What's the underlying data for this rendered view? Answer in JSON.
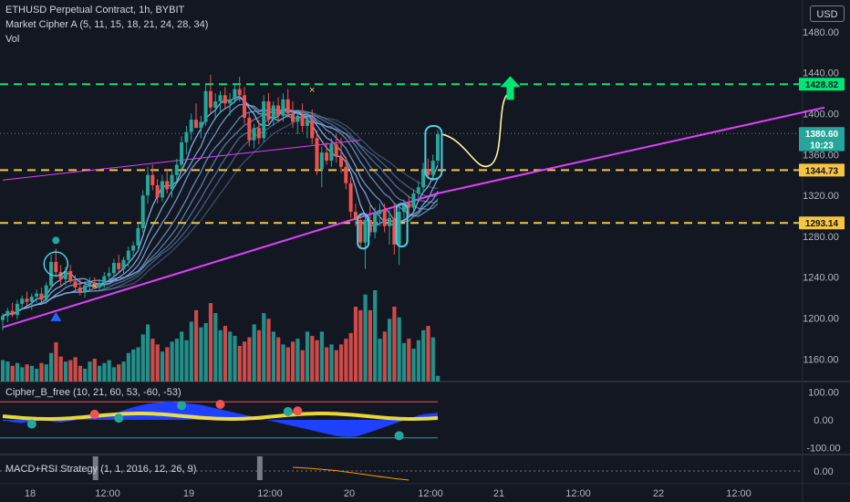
{
  "header": {
    "symbol": "ETHUSD Perpetual Contract, 1h, BYBIT",
    "indicator": "Market Cipher A (5, 11, 15, 18, 21, 24, 28, 34)",
    "volume": "Vol",
    "currency": "USD"
  },
  "panes": {
    "cipher_b": "Cipher_B_free (10, 21, 60, 53, -60, -53)",
    "macd": "MACD+RSI Strategy (1, 1, 2016, 12, 26, 9)"
  },
  "colors": {
    "background": "#131722",
    "up": "#26a69a",
    "down": "#ef5350",
    "resistance_line": "#00e676",
    "support_line": "#f5c542",
    "trend_line": "#e040fb",
    "projection": "#fff59d",
    "arrow": "#00e676",
    "wave": "#1e40ff",
    "ribbon": "#7fb0e6"
  },
  "chart_data": {
    "type": "candlestick",
    "price_axis": {
      "ticks": [
        "1480.00",
        "1440.00",
        "1400.00",
        "1360.00",
        "1320.00",
        "1280.00",
        "1240.00",
        "1200.00",
        "1160.00"
      ],
      "ylim": [
        1138,
        1504
      ]
    },
    "time_axis": {
      "ticks": [
        "18",
        "12:00",
        "19",
        "12:00",
        "20",
        "12:00",
        "21",
        "12:00",
        "22",
        "12:00"
      ]
    },
    "price_labels": [
      {
        "value": 1428.82,
        "text": "1428.82",
        "color": "#00e676",
        "text_color": "#131722"
      },
      {
        "value": 1380.6,
        "text": "1380.60",
        "color": "#26a69a",
        "text_color": "#ffffff"
      },
      {
        "value": 1369.5,
        "text": "10:23",
        "color": "#26a69a",
        "text_color": "#ffffff"
      },
      {
        "value": 1344.73,
        "text": "1344.73",
        "color": "#f5c542",
        "text_color": "#131722"
      },
      {
        "value": 1293.14,
        "text": "1293.14",
        "color": "#f5c542",
        "text_color": "#131722"
      }
    ],
    "horizontal_levels": [
      {
        "value": 1428.82,
        "color": "#00e676",
        "style": "dashed"
      },
      {
        "value": 1344.73,
        "color": "#f5c542",
        "style": "dashed"
      },
      {
        "value": 1293.14,
        "color": "#f5c542",
        "style": "dashed"
      }
    ],
    "last_price_dotted": 1380.6,
    "cipher_b_axis": {
      "ticks": [
        "100.00",
        "0.00",
        "-100.00"
      ]
    },
    "macd_axis": {
      "ticks": [
        "0.00"
      ]
    },
    "candles": [
      {
        "t": 0,
        "o": 1198,
        "h": 1205,
        "l": 1188,
        "c": 1202
      },
      {
        "t": 1,
        "o": 1202,
        "h": 1210,
        "l": 1196,
        "c": 1207
      },
      {
        "t": 2,
        "o": 1207,
        "h": 1215,
        "l": 1201,
        "c": 1203
      },
      {
        "t": 3,
        "o": 1203,
        "h": 1218,
        "l": 1199,
        "c": 1214
      },
      {
        "t": 4,
        "o": 1214,
        "h": 1222,
        "l": 1208,
        "c": 1219
      },
      {
        "t": 5,
        "o": 1219,
        "h": 1226,
        "l": 1211,
        "c": 1216
      },
      {
        "t": 6,
        "o": 1216,
        "h": 1224,
        "l": 1208,
        "c": 1221
      },
      {
        "t": 7,
        "o": 1221,
        "h": 1228,
        "l": 1215,
        "c": 1224
      },
      {
        "t": 8,
        "o": 1224,
        "h": 1230,
        "l": 1214,
        "c": 1218
      },
      {
        "t": 9,
        "o": 1218,
        "h": 1235,
        "l": 1214,
        "c": 1232
      },
      {
        "t": 10,
        "o": 1232,
        "h": 1262,
        "l": 1228,
        "c": 1255
      },
      {
        "t": 11,
        "o": 1255,
        "h": 1268,
        "l": 1240,
        "c": 1245
      },
      {
        "t": 12,
        "o": 1245,
        "h": 1252,
        "l": 1232,
        "c": 1238
      },
      {
        "t": 13,
        "o": 1238,
        "h": 1250,
        "l": 1232,
        "c": 1246
      },
      {
        "t": 14,
        "o": 1246,
        "h": 1252,
        "l": 1234,
        "c": 1236
      },
      {
        "t": 15,
        "o": 1236,
        "h": 1242,
        "l": 1226,
        "c": 1230
      },
      {
        "t": 16,
        "o": 1230,
        "h": 1238,
        "l": 1222,
        "c": 1226
      },
      {
        "t": 17,
        "o": 1226,
        "h": 1236,
        "l": 1220,
        "c": 1232
      },
      {
        "t": 18,
        "o": 1232,
        "h": 1240,
        "l": 1226,
        "c": 1235
      },
      {
        "t": 19,
        "o": 1235,
        "h": 1240,
        "l": 1228,
        "c": 1230
      },
      {
        "t": 20,
        "o": 1230,
        "h": 1238,
        "l": 1226,
        "c": 1234
      },
      {
        "t": 21,
        "o": 1234,
        "h": 1245,
        "l": 1230,
        "c": 1241
      },
      {
        "t": 22,
        "o": 1241,
        "h": 1250,
        "l": 1236,
        "c": 1244
      },
      {
        "t": 23,
        "o": 1244,
        "h": 1258,
        "l": 1240,
        "c": 1254
      },
      {
        "t": 24,
        "o": 1254,
        "h": 1262,
        "l": 1244,
        "c": 1248
      },
      {
        "t": 25,
        "o": 1248,
        "h": 1260,
        "l": 1244,
        "c": 1257
      },
      {
        "t": 26,
        "o": 1257,
        "h": 1270,
        "l": 1250,
        "c": 1266
      },
      {
        "t": 27,
        "o": 1266,
        "h": 1275,
        "l": 1258,
        "c": 1271
      },
      {
        "t": 28,
        "o": 1271,
        "h": 1292,
        "l": 1266,
        "c": 1288
      },
      {
        "t": 29,
        "o": 1288,
        "h": 1325,
        "l": 1284,
        "c": 1320
      },
      {
        "t": 30,
        "o": 1320,
        "h": 1348,
        "l": 1312,
        "c": 1340
      },
      {
        "t": 31,
        "o": 1340,
        "h": 1350,
        "l": 1325,
        "c": 1330
      },
      {
        "t": 32,
        "o": 1330,
        "h": 1336,
        "l": 1312,
        "c": 1318
      },
      {
        "t": 33,
        "o": 1318,
        "h": 1340,
        "l": 1314,
        "c": 1334
      },
      {
        "t": 34,
        "o": 1334,
        "h": 1346,
        "l": 1322,
        "c": 1326
      },
      {
        "t": 35,
        "o": 1326,
        "h": 1345,
        "l": 1318,
        "c": 1340
      },
      {
        "t": 36,
        "o": 1340,
        "h": 1356,
        "l": 1334,
        "c": 1350
      },
      {
        "t": 37,
        "o": 1350,
        "h": 1378,
        "l": 1344,
        "c": 1372
      },
      {
        "t": 38,
        "o": 1372,
        "h": 1388,
        "l": 1360,
        "c": 1382
      },
      {
        "t": 39,
        "o": 1382,
        "h": 1400,
        "l": 1374,
        "c": 1394
      },
      {
        "t": 40,
        "o": 1394,
        "h": 1410,
        "l": 1386,
        "c": 1386
      },
      {
        "t": 41,
        "o": 1386,
        "h": 1398,
        "l": 1376,
        "c": 1392
      },
      {
        "t": 42,
        "o": 1392,
        "h": 1428,
        "l": 1388,
        "c": 1422
      },
      {
        "t": 43,
        "o": 1422,
        "h": 1438,
        "l": 1400,
        "c": 1406
      },
      {
        "t": 44,
        "o": 1406,
        "h": 1420,
        "l": 1394,
        "c": 1412
      },
      {
        "t": 45,
        "o": 1412,
        "h": 1422,
        "l": 1400,
        "c": 1418
      },
      {
        "t": 46,
        "o": 1418,
        "h": 1426,
        "l": 1404,
        "c": 1410
      },
      {
        "t": 47,
        "o": 1410,
        "h": 1420,
        "l": 1398,
        "c": 1414
      },
      {
        "t": 48,
        "o": 1414,
        "h": 1430,
        "l": 1410,
        "c": 1424
      },
      {
        "t": 49,
        "o": 1424,
        "h": 1436,
        "l": 1412,
        "c": 1418
      },
      {
        "t": 50,
        "o": 1418,
        "h": 1426,
        "l": 1390,
        "c": 1396
      },
      {
        "t": 51,
        "o": 1396,
        "h": 1402,
        "l": 1368,
        "c": 1374
      },
      {
        "t": 52,
        "o": 1374,
        "h": 1390,
        "l": 1366,
        "c": 1386
      },
      {
        "t": 53,
        "o": 1386,
        "h": 1394,
        "l": 1370,
        "c": 1376
      },
      {
        "t": 54,
        "o": 1376,
        "h": 1418,
        "l": 1372,
        "c": 1412
      },
      {
        "t": 55,
        "o": 1412,
        "h": 1420,
        "l": 1390,
        "c": 1394
      },
      {
        "t": 56,
        "o": 1394,
        "h": 1412,
        "l": 1388,
        "c": 1408
      },
      {
        "t": 57,
        "o": 1408,
        "h": 1416,
        "l": 1392,
        "c": 1398
      },
      {
        "t": 58,
        "o": 1398,
        "h": 1420,
        "l": 1392,
        "c": 1414
      },
      {
        "t": 59,
        "o": 1414,
        "h": 1424,
        "l": 1396,
        "c": 1400
      },
      {
        "t": 60,
        "o": 1400,
        "h": 1412,
        "l": 1386,
        "c": 1392
      },
      {
        "t": 61,
        "o": 1392,
        "h": 1404,
        "l": 1380,
        "c": 1398
      },
      {
        "t": 62,
        "o": 1398,
        "h": 1410,
        "l": 1382,
        "c": 1388
      },
      {
        "t": 63,
        "o": 1388,
        "h": 1402,
        "l": 1376,
        "c": 1394
      },
      {
        "t": 64,
        "o": 1394,
        "h": 1404,
        "l": 1370,
        "c": 1376
      },
      {
        "t": 65,
        "o": 1376,
        "h": 1384,
        "l": 1340,
        "c": 1346
      },
      {
        "t": 66,
        "o": 1346,
        "h": 1368,
        "l": 1328,
        "c": 1362
      },
      {
        "t": 67,
        "o": 1362,
        "h": 1372,
        "l": 1350,
        "c": 1354
      },
      {
        "t": 68,
        "o": 1354,
        "h": 1376,
        "l": 1348,
        "c": 1370
      },
      {
        "t": 69,
        "o": 1370,
        "h": 1380,
        "l": 1352,
        "c": 1358
      },
      {
        "t": 70,
        "o": 1358,
        "h": 1376,
        "l": 1342,
        "c": 1348
      },
      {
        "t": 71,
        "o": 1348,
        "h": 1358,
        "l": 1326,
        "c": 1332
      },
      {
        "t": 72,
        "o": 1332,
        "h": 1338,
        "l": 1298,
        "c": 1304
      },
      {
        "t": 73,
        "o": 1304,
        "h": 1312,
        "l": 1290,
        "c": 1296
      },
      {
        "t": 74,
        "o": 1296,
        "h": 1302,
        "l": 1268,
        "c": 1274
      },
      {
        "t": 75,
        "o": 1274,
        "h": 1300,
        "l": 1248,
        "c": 1296
      },
      {
        "t": 76,
        "o": 1296,
        "h": 1310,
        "l": 1280,
        "c": 1284
      },
      {
        "t": 77,
        "o": 1284,
        "h": 1308,
        "l": 1278,
        "c": 1302
      },
      {
        "t": 78,
        "o": 1302,
        "h": 1312,
        "l": 1290,
        "c": 1306
      },
      {
        "t": 79,
        "o": 1306,
        "h": 1312,
        "l": 1284,
        "c": 1290
      },
      {
        "t": 80,
        "o": 1290,
        "h": 1306,
        "l": 1272,
        "c": 1298
      },
      {
        "t": 81,
        "o": 1298,
        "h": 1312,
        "l": 1262,
        "c": 1272
      },
      {
        "t": 82,
        "o": 1272,
        "h": 1310,
        "l": 1252,
        "c": 1304
      },
      {
        "t": 83,
        "o": 1304,
        "h": 1316,
        "l": 1296,
        "c": 1312
      },
      {
        "t": 84,
        "o": 1312,
        "h": 1320,
        "l": 1300,
        "c": 1308
      },
      {
        "t": 85,
        "o": 1308,
        "h": 1326,
        "l": 1304,
        "c": 1322
      },
      {
        "t": 86,
        "o": 1322,
        "h": 1334,
        "l": 1316,
        "c": 1328
      },
      {
        "t": 87,
        "o": 1328,
        "h": 1352,
        "l": 1322,
        "c": 1346
      },
      {
        "t": 88,
        "o": 1346,
        "h": 1356,
        "l": 1336,
        "c": 1340
      },
      {
        "t": 89,
        "o": 1340,
        "h": 1360,
        "l": 1334,
        "c": 1354
      },
      {
        "t": 90,
        "o": 1354,
        "h": 1384,
        "l": 1350,
        "c": 1380
      }
    ],
    "volumes": [
      30,
      28,
      22,
      26,
      20,
      24,
      22,
      18,
      26,
      24,
      40,
      55,
      35,
      28,
      30,
      34,
      22,
      18,
      28,
      32,
      22,
      26,
      30,
      20,
      24,
      28,
      40,
      45,
      48,
      66,
      80,
      60,
      52,
      42,
      48,
      56,
      60,
      70,
      58,
      84,
      100,
      76,
      82,
      110,
      96,
      72,
      78,
      70,
      64,
      50,
      56,
      62,
      80,
      72,
      96,
      88,
      70,
      62,
      52,
      48,
      56,
      60,
      44,
      70,
      64,
      58,
      70,
      48,
      52,
      44,
      52,
      60,
      68,
      105,
      100,
      122,
      100,
      128,
      60,
      70,
      88,
      105,
      90,
      54,
      60,
      46,
      58,
      72,
      78,
      62,
      8
    ],
    "overlay_lines": [
      {
        "name": "",
        "color": "#e040fb",
        "points": [
          [
            0,
            1191
          ],
          [
            90,
            1322
          ],
          [
            170,
            1406
          ]
        ]
      },
      {
        "name": "",
        "color": "#e040fb",
        "points": [
          [
            0,
            1335
          ],
          [
            74,
            1374
          ]
        ]
      }
    ],
    "cipher_b_wave": [
      -5,
      -4,
      -8,
      -10,
      -12,
      -8,
      -6,
      -4,
      -2,
      -3,
      -6,
      -8,
      -10,
      -6,
      -4,
      -2,
      2,
      4,
      8,
      10,
      12,
      14,
      18,
      22,
      28,
      34,
      40,
      46,
      50,
      54,
      58,
      60,
      62,
      64,
      66,
      66,
      64,
      62,
      60,
      58,
      56,
      54,
      50,
      46,
      42,
      38,
      34,
      30,
      26,
      22,
      18,
      14,
      10,
      6,
      2,
      -2,
      -6,
      -10,
      -14,
      -18,
      -22,
      -26,
      -30,
      -34,
      -38,
      -42,
      -46,
      -50,
      -54,
      -58,
      -60,
      -62,
      -62,
      -60,
      -56,
      -50,
      -44,
      -38,
      -32,
      -26,
      -20,
      -14,
      -8,
      -2,
      4,
      10,
      16,
      20,
      22,
      24,
      26
    ],
    "cipher_b_dots": [
      {
        "t": 6,
        "v": -15,
        "color": "#26a69a"
      },
      {
        "t": 19,
        "v": 20,
        "color": "#ef5350"
      },
      {
        "t": 24,
        "v": 6,
        "color": "#26a69a"
      },
      {
        "t": 37,
        "v": 52,
        "color": "#26a69a"
      },
      {
        "t": 45,
        "v": 56,
        "color": "#ef5350"
      },
      {
        "t": 59,
        "v": 30,
        "color": "#26a69a"
      },
      {
        "t": 61,
        "v": 32,
        "color": "#ef5350"
      },
      {
        "t": 82,
        "v": -57,
        "color": "#26a69a"
      }
    ]
  }
}
